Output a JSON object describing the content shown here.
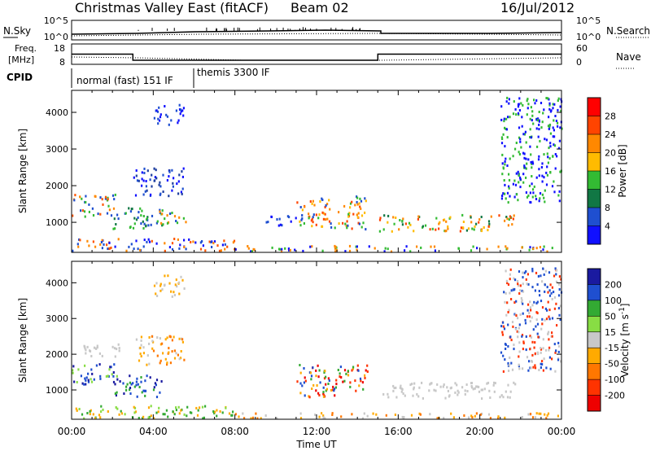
{
  "header": {
    "station": "Christmas Valley East (fitACF)",
    "beam": "Beam 02",
    "date": "16/Jul/2012"
  },
  "summary": {
    "nsky_label": "N.Sky",
    "nsearch_label": "N.Search",
    "nsky_ticks": [
      "10^5",
      "10^0"
    ],
    "nsearch_ticks": [
      "10^5",
      "10^0"
    ],
    "freq_label_1": "Freq.",
    "freq_label_2": "[MHz]",
    "freq_ticks": [
      "18",
      "8"
    ],
    "nave_label": "Nave",
    "nave_ticks": [
      "60",
      "0"
    ],
    "cpid_label": "CPID",
    "cpid_segments": [
      {
        "label": "normal (fast) 151 IF",
        "start_h": 0,
        "end_h": 6
      },
      {
        "label": "themis 3300 IF",
        "start_h": 6,
        "end_h": 24
      }
    ],
    "freq_series_mhz": [
      [
        0,
        13
      ],
      [
        3,
        13
      ],
      [
        3,
        10
      ],
      [
        15,
        10
      ],
      [
        15,
        13
      ],
      [
        24,
        13
      ]
    ]
  },
  "chart_data": [
    {
      "type": "heatmap",
      "name": "power",
      "ylabel": "Slant Range [km]",
      "xlabel": "",
      "xlim_h": [
        0,
        24
      ],
      "ylim": [
        180,
        4600
      ],
      "y_ticks": [
        "1000",
        "2000",
        "3000",
        "4000"
      ],
      "y_tick_values": [
        1000,
        2000,
        3000,
        4000
      ],
      "colorbar_label": "Power [dB]",
      "colorbar_ticks": [
        "28",
        "24",
        "20",
        "16",
        "12",
        "8",
        "4"
      ],
      "colorbar_colors": [
        "#ff0000",
        "#ff4400",
        "#ff8800",
        "#ffbb00",
        "#33bb33",
        "#117744",
        "#1f4fd0",
        "#1010ff"
      ],
      "regions": [
        {
          "t0": 0.0,
          "t1": 2.2,
          "r0": 1150,
          "r1": 1750,
          "c": [
            "#ff5500",
            "#ff8800",
            "#33bb33",
            "#1f4fd0"
          ]
        },
        {
          "t0": 2.0,
          "t1": 4.5,
          "r0": 800,
          "r1": 1400,
          "c": [
            "#33bb33",
            "#1f4fd0",
            "#117744"
          ]
        },
        {
          "t0": 3.0,
          "t1": 5.5,
          "r0": 1700,
          "r1": 2500,
          "c": [
            "#1f4fd0",
            "#1010ff",
            "#1f3fa0"
          ]
        },
        {
          "t0": 4.0,
          "t1": 5.5,
          "r0": 3600,
          "r1": 4200,
          "c": [
            "#1f4fd0",
            "#1010ff"
          ]
        },
        {
          "t0": 4.0,
          "t1": 5.6,
          "r0": 950,
          "r1": 1300,
          "c": [
            "#ff8800",
            "#33bb33",
            "#1f4fd0"
          ]
        },
        {
          "t0": 9.5,
          "t1": 11.0,
          "r0": 900,
          "r1": 1200,
          "c": [
            "#1f4fd0",
            "#1010ff"
          ]
        },
        {
          "t0": 11.0,
          "t1": 14.5,
          "r0": 800,
          "r1": 1700,
          "c": [
            "#ff4400",
            "#ff8800",
            "#ffbb00",
            "#33bb33",
            "#1f4fd0"
          ]
        },
        {
          "t0": 15.0,
          "t1": 21.7,
          "r0": 750,
          "r1": 1200,
          "c": [
            "#ff4400",
            "#ff8800",
            "#ffbb00",
            "#33bb33",
            "#117744"
          ]
        },
        {
          "t0": 0.0,
          "t1": 8.0,
          "r0": 200,
          "r1": 550,
          "c": [
            "#1010ff",
            "#1f4fd0",
            "#ff5500",
            "#ff8800"
          ]
        },
        {
          "t0": 8.0,
          "t1": 24.0,
          "r0": 200,
          "r1": 350,
          "c": [
            "#1010ff",
            "#ff8800",
            "#33bb33"
          ]
        },
        {
          "t0": 21.0,
          "t1": 24.0,
          "r0": 1500,
          "r1": 4400,
          "c": [
            "#1010ff",
            "#33bb33"
          ]
        }
      ]
    },
    {
      "type": "heatmap",
      "name": "velocity",
      "ylabel": "Slant Range [km]",
      "xlabel": "Time UT",
      "xlim_h": [
        0,
        24
      ],
      "ylim": [
        180,
        4600
      ],
      "y_ticks": [
        "1000",
        "2000",
        "3000",
        "4000"
      ],
      "y_tick_values": [
        1000,
        2000,
        3000,
        4000
      ],
      "x_ticks": [
        "00:00",
        "04:00",
        "08:00",
        "12:00",
        "16:00",
        "20:00",
        "00:00"
      ],
      "colorbar_label": "Velocity [m s^-1]",
      "colorbar_ticks": [
        "200",
        "100",
        "50",
        "15",
        "-15",
        "-50",
        "-100",
        "-200"
      ],
      "colorbar_colors": [
        "#1a1aa0",
        "#1f4fd0",
        "#33aa33",
        "#88dd44",
        "#c8c8c8",
        "#ffaa00",
        "#ff7700",
        "#ff3300",
        "#ee0000"
      ],
      "regions": [
        {
          "t0": 0.0,
          "t1": 2.2,
          "r0": 1150,
          "r1": 1750,
          "c": [
            "#1a1aa0",
            "#1f4fd0",
            "#88dd44"
          ]
        },
        {
          "t0": 2.0,
          "t1": 4.5,
          "r0": 800,
          "r1": 1400,
          "c": [
            "#1f4fd0",
            "#33aa33",
            "#1a1aa0"
          ]
        },
        {
          "t0": 3.0,
          "t1": 5.5,
          "r0": 1700,
          "r1": 2500,
          "c": [
            "#ffaa00",
            "#c8c8c8",
            "#ff7700"
          ]
        },
        {
          "t0": 4.0,
          "t1": 5.5,
          "r0": 3600,
          "r1": 4200,
          "c": [
            "#c8c8c8",
            "#ffaa00"
          ]
        },
        {
          "t0": 0.5,
          "t1": 2.5,
          "r0": 1900,
          "r1": 2300,
          "c": [
            "#c8c8c8"
          ]
        },
        {
          "t0": 11.0,
          "t1": 14.5,
          "r0": 800,
          "r1": 1700,
          "c": [
            "#ff3300",
            "#ee0000",
            "#33aa33",
            "#1f4fd0",
            "#ffaa00"
          ]
        },
        {
          "t0": 15.0,
          "t1": 21.7,
          "r0": 750,
          "r1": 1200,
          "c": [
            "#c8c8c8"
          ]
        },
        {
          "t0": 0.0,
          "t1": 8.0,
          "r0": 200,
          "r1": 550,
          "c": [
            "#33aa33",
            "#88dd44",
            "#ffaa00"
          ]
        },
        {
          "t0": 8.0,
          "t1": 24.0,
          "r0": 200,
          "r1": 350,
          "c": [
            "#ffaa00",
            "#ff7700",
            "#c8c8c8"
          ]
        },
        {
          "t0": 21.0,
          "t1": 24.0,
          "r0": 1500,
          "r1": 4400,
          "c": [
            "#1f4fd0",
            "#ff3300",
            "#c8c8c8"
          ]
        }
      ]
    }
  ]
}
